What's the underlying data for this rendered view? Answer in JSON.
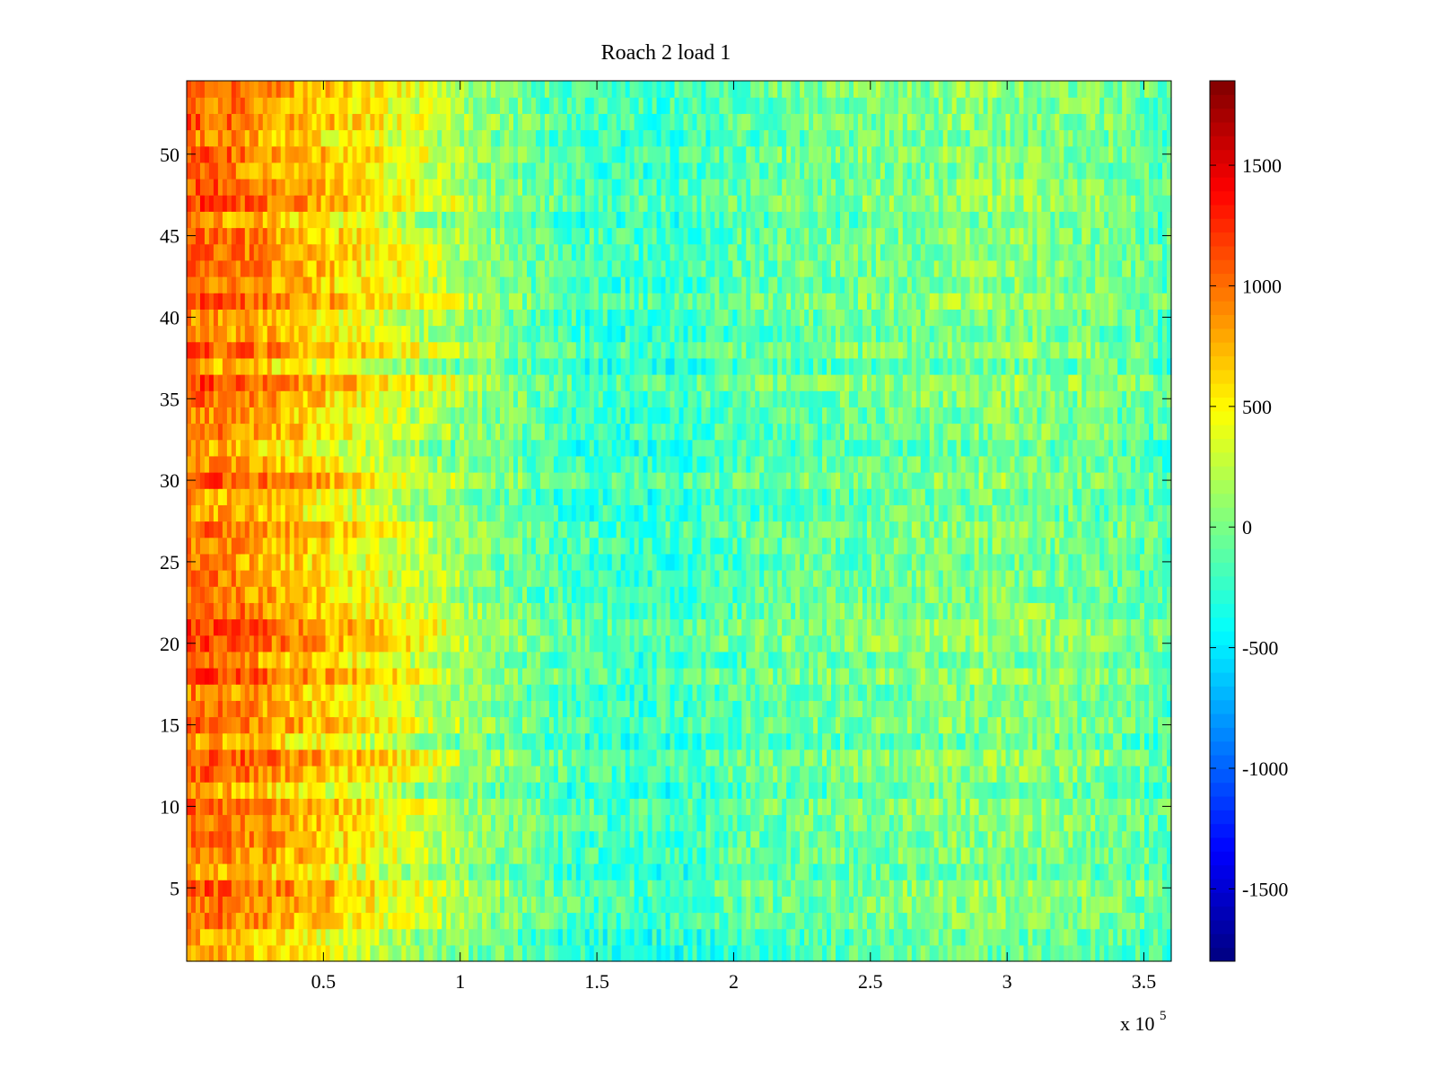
{
  "chart_data": {
    "type": "heatmap",
    "title": "Roach 2 load 1",
    "xlabel": "",
    "ylabel": "",
    "xlim": [
      0,
      360000
    ],
    "ylim": [
      0.5,
      54.5
    ],
    "rows": 54,
    "x_ticks": [
      50000,
      100000,
      150000,
      200000,
      250000,
      300000,
      350000
    ],
    "x_tick_labels": [
      "0.5",
      "1",
      "1.5",
      "2",
      "2.5",
      "3",
      "3.5"
    ],
    "x_exponent_label": {
      "prefix": "x 10",
      "exponent": "5"
    },
    "y_ticks": [
      5,
      10,
      15,
      20,
      25,
      30,
      35,
      40,
      45,
      50
    ],
    "y_tick_labels": [
      "5",
      "10",
      "15",
      "20",
      "25",
      "30",
      "35",
      "40",
      "45",
      "50"
    ],
    "colorbar": {
      "colormap": "jet",
      "range": [
        -1800,
        1850
      ],
      "ticks": [
        -1500,
        -1000,
        -500,
        0,
        500,
        1000,
        1500
      ],
      "tick_labels": [
        "-1500",
        "-1000",
        "-500",
        "0",
        "500",
        "1000",
        "1500"
      ]
    },
    "value_profile": {
      "x": [
        0,
        20000,
        40000,
        60000,
        80000,
        100000,
        120000,
        140000,
        160000,
        180000,
        200000,
        220000,
        240000,
        260000,
        280000,
        300000,
        320000,
        340000,
        360000
      ],
      "mean": [
        1000,
        900,
        720,
        520,
        330,
        130,
        -30,
        -180,
        -230,
        -220,
        -130,
        -80,
        -50,
        -20,
        20,
        40,
        10,
        -40,
        -150
      ]
    },
    "grid": false,
    "legend": "none"
  }
}
